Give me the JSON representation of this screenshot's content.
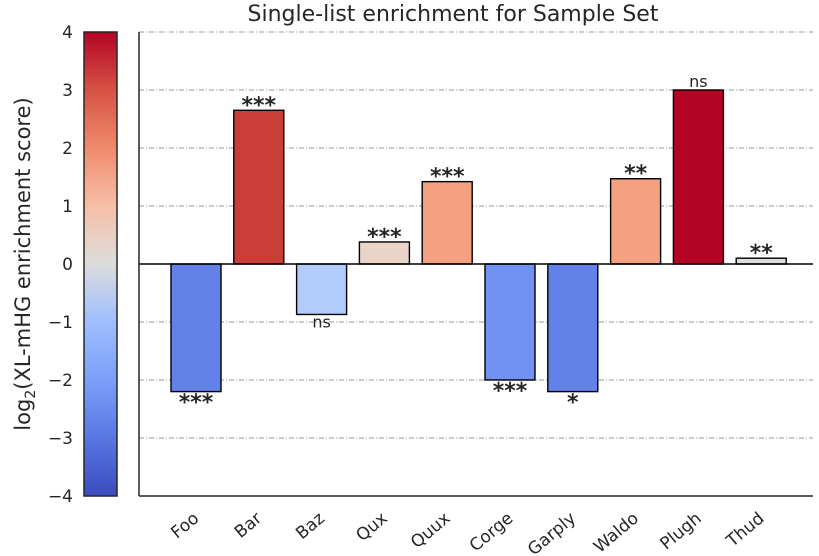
{
  "chart_data": {
    "type": "bar",
    "title": "Single-list enrichment for Sample Set",
    "ylabel_prefix": "log",
    "ylabel_sub": "2",
    "ylabel_rest": "(XL-mHG enrichment score)",
    "categories": [
      "Foo",
      "Bar",
      "Baz",
      "Qux",
      "Quux",
      "Corge",
      "Garply",
      "Waldo",
      "Plugh",
      "Thud"
    ],
    "values": [
      -2.2,
      2.65,
      -0.87,
      0.38,
      1.42,
      -2.0,
      -2.2,
      1.47,
      3.0,
      0.1
    ],
    "significance": [
      "***",
      "***",
      "ns",
      "***",
      "***",
      "***",
      "*",
      "**",
      "ns",
      "**"
    ],
    "bar_colors": [
      "#6282ea",
      "#cb3e38",
      "#b1cbfc",
      "#ead4c8",
      "#f5a081",
      "#7093f3",
      "#6282ea",
      "#f5a081",
      "#b40426",
      "#dcdddd"
    ],
    "ylim": [
      -4,
      4
    ],
    "yticks": [
      "−4",
      "−3",
      "−2",
      "−1",
      "0",
      "1",
      "2",
      "3",
      "4"
    ],
    "grid": true,
    "colorbar": {
      "colormap": "coolwarm",
      "range": [
        -4,
        4
      ]
    }
  }
}
